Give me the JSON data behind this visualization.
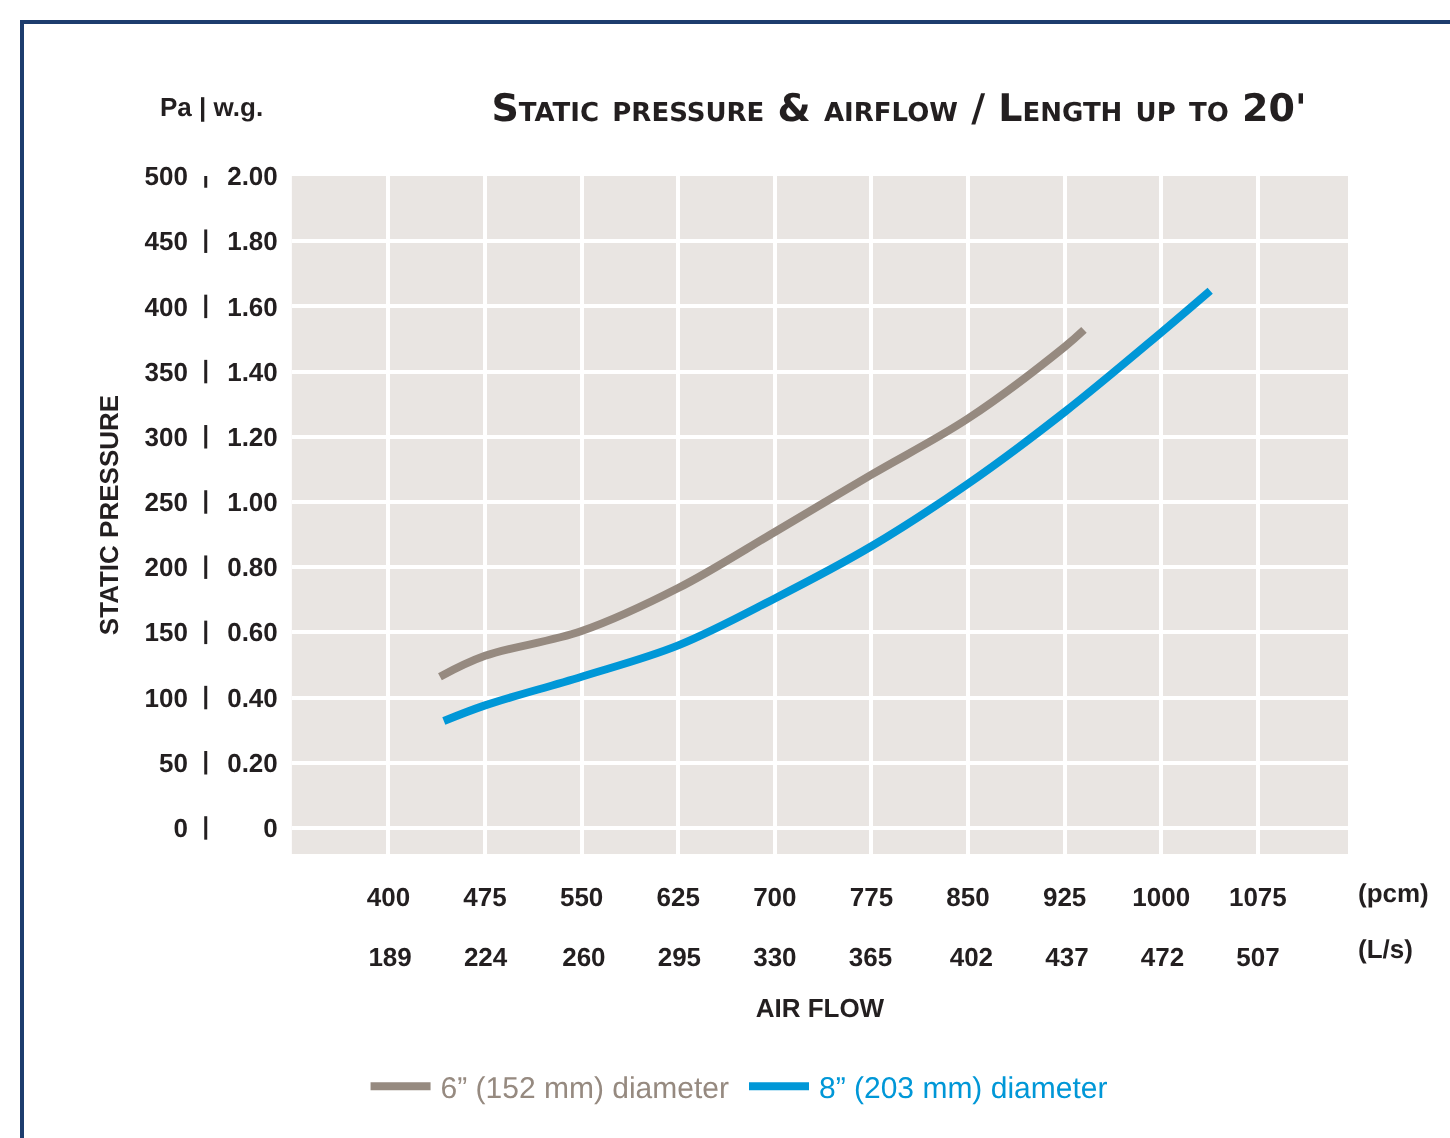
{
  "chart_data": {
    "type": "line",
    "title": "Static pressure & airflow / Length up to 20'",
    "xlabel": "AIR FLOW",
    "ylabel": "STATIC PRESSURE",
    "annotations": [
      "Pa | w.g.",
      "(pcm)",
      "(L/s)"
    ],
    "xlim": [
      325,
      1145
    ],
    "xticks": [
      400,
      475,
      550,
      625,
      700,
      775,
      850,
      925,
      1000,
      1075
    ],
    "x2lim": [
      153,
      540
    ],
    "x2ticks": [
      189,
      224,
      260,
      295,
      330,
      365,
      402,
      437,
      472,
      507
    ],
    "ylim": [
      -20,
      500
    ],
    "yticks": [
      0,
      50,
      100,
      150,
      200,
      250,
      300,
      350,
      400,
      450,
      500
    ],
    "y2lim": [
      -0.08,
      2.0
    ],
    "y2ticks": [
      0,
      {
        "value": 0.2,
        "label": "0.20"
      },
      {
        "value": 0.4,
        "label": "0.40"
      },
      {
        "value": 0.6,
        "label": "0.60"
      },
      {
        "value": 0.8,
        "label": "0.80"
      },
      {
        "value": 1.0,
        "label": "1.00"
      },
      {
        "value": 1.2,
        "label": "1.20"
      },
      {
        "value": 1.4,
        "label": "1.40"
      },
      {
        "value": 1.6,
        "label": "1.60"
      },
      {
        "value": 1.8,
        "label": "1.80"
      },
      {
        "value": 2.0,
        "label": "2.00"
      }
    ],
    "grid": true,
    "legend": "bottom",
    "marker": "none",
    "line_style": "solid",
    "series": [
      {
        "name": "6” (152 mm) diameter",
        "color": "#968a80",
        "x": [
          440,
          475,
          550,
          625,
          700,
          775,
          850,
          925,
          940
        ],
        "values": [
          116,
          132,
          151,
          184,
          227,
          271,
          314,
          369,
          382
        ]
      },
      {
        "name": "8” (203 mm) diameter",
        "color": "#0097d7",
        "x": [
          443,
          475,
          550,
          625,
          700,
          775,
          850,
          925,
          1000,
          1038
        ],
        "values": [
          82,
          94,
          116,
          140,
          176,
          216,
          264,
          319,
          380,
          412
        ]
      }
    ]
  }
}
